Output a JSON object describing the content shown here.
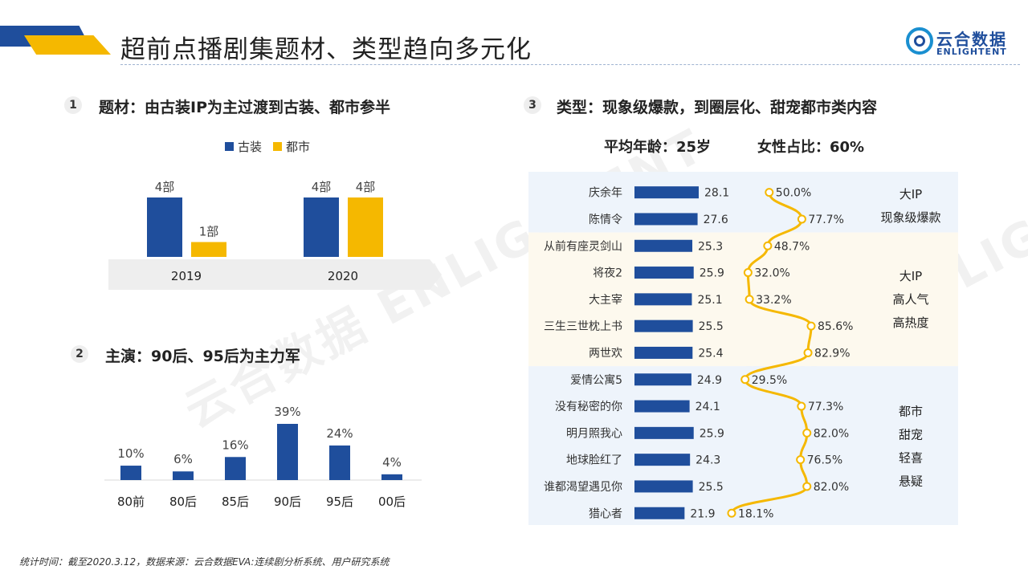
{
  "header": {
    "title": "超前点播剧集题材、类型趋向多元化",
    "logo_cn": "云合数据",
    "logo_en": "ENLIGHTENT",
    "watermark_cn": "云合数据",
    "watermark_en": "ENLIGHTENT"
  },
  "colors": {
    "blue": "#1f4e9c",
    "yellow": "#f5b800",
    "band_blue": "#eef4fb",
    "band_yellow": "#fdf9ee",
    "gray_bar": "#eeeeee"
  },
  "sections": [
    {
      "num": "1",
      "title": "题材：由古装IP为主过渡到古装、都市参半"
    },
    {
      "num": "2",
      "title": "主演：90后、95后为主力军"
    },
    {
      "num": "3",
      "title": "类型：现象级爆款，到圈层化、甜宠都市类内容"
    }
  ],
  "stats": {
    "avg_age": "平均年龄：25岁",
    "female_ratio": "女性占比：60%"
  },
  "footer": "统计时间：截至2020.3.12，数据来源：云合数据EVA:连续剧分析系统、用户研究系统",
  "chart_data": [
    {
      "type": "bar",
      "title": "题材：由古装IP为主过渡到古装、都市参半",
      "categories": [
        "2019",
        "2020"
      ],
      "series": [
        {
          "name": "古装",
          "values": [
            4,
            4
          ],
          "labels": [
            "4部",
            "4部"
          ]
        },
        {
          "name": "都市",
          "values": [
            1,
            4
          ],
          "labels": [
            "1部",
            "4部"
          ]
        }
      ],
      "ylim": [
        0,
        4
      ]
    },
    {
      "type": "bar",
      "title": "主演：90后、95后为主力军",
      "categories": [
        "80前",
        "80后",
        "85后",
        "90后",
        "95后",
        "00后"
      ],
      "values": [
        10,
        6,
        16,
        39,
        24,
        4
      ],
      "labels": [
        "10%",
        "6%",
        "16%",
        "39%",
        "24%",
        "4%"
      ],
      "ylim": [
        0,
        39
      ]
    },
    {
      "type": "bar",
      "title": "类型：现象级爆款，到圈层化、甜宠都市类内容",
      "categories": [
        "庆余年",
        "陈情令",
        "从前有座灵剑山",
        "将夜2",
        "大主宰",
        "三生三世枕上书",
        "两世欢",
        "爱情公寓5",
        "没有秘密的你",
        "明月照我心",
        "地球脸红了",
        "谁都渴望遇见你",
        "猎心者"
      ],
      "series": [
        {
          "name": "平均年龄",
          "type": "bar",
          "values": [
            28.1,
            27.6,
            25.3,
            25.9,
            25.1,
            25.5,
            25.4,
            24.9,
            24.1,
            25.9,
            24.3,
            25.5,
            21.9
          ],
          "labels": [
            "28.1",
            "27.6",
            "25.3",
            "25.9",
            "25.1",
            "25.5",
            "25.4",
            "24.9",
            "24.1",
            "25.9",
            "24.3",
            "25.5",
            "21.9"
          ]
        },
        {
          "name": "女性占比",
          "type": "line",
          "values": [
            50.0,
            77.7,
            48.7,
            32.0,
            33.2,
            85.6,
            82.9,
            29.5,
            77.3,
            82.0,
            76.5,
            82.0,
            18.1
          ],
          "labels": [
            "50.0%",
            "77.7%",
            "48.7%",
            "32.0%",
            "33.2%",
            "85.6%",
            "82.9%",
            "29.5%",
            "77.3%",
            "82.0%",
            "76.5%",
            "82.0%",
            "18.1%"
          ]
        }
      ],
      "groups": [
        {
          "lines": [
            "大IP",
            "现象级爆款"
          ],
          "from": 0,
          "to": 1,
          "band": "blue"
        },
        {
          "lines": [
            "大IP",
            "高人气",
            "高热度"
          ],
          "from": 2,
          "to": 6,
          "band": "yellow"
        },
        {
          "lines": [
            "都市",
            "甜宠",
            "轻喜",
            "悬疑"
          ],
          "from": 7,
          "to": 12,
          "band": "blue"
        }
      ]
    }
  ]
}
